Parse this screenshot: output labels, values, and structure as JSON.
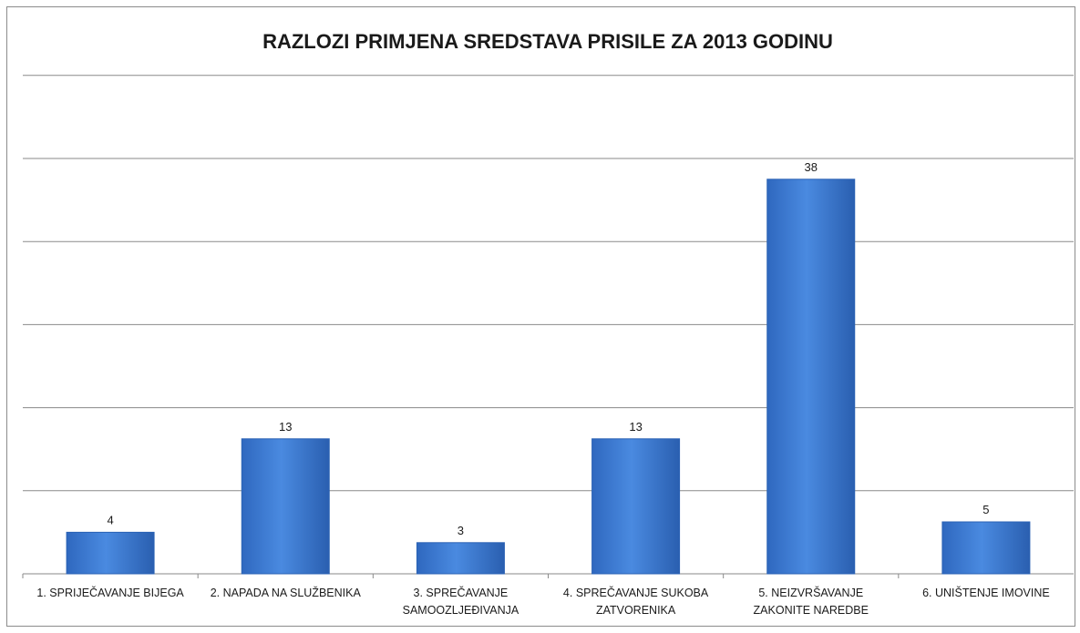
{
  "chart_data": {
    "type": "bar",
    "title": "RAZLOZI PRIMJENA SREDSTAVA PRISILE ZA 2013 GODINU",
    "xlabel": "",
    "ylabel": "",
    "categories": [
      [
        "1. SPRIJEČAVANJE BIJEGA"
      ],
      [
        "2. NAPADA NA SLUŽBENIKA"
      ],
      [
        "3. SPREČAVANJE",
        "SAMOOZLJEĐIVANJA"
      ],
      [
        "4. SPREČAVANJE SUKOBA",
        "ZATVORENIKA"
      ],
      [
        "5. NEIZVRŠAVANJE",
        "ZAKONITE NAREDBE"
      ],
      [
        "6. UNIŠTENJE IMOVINE"
      ]
    ],
    "values": [
      4,
      13,
      3,
      13,
      38,
      5
    ],
    "data_labels": [
      "4",
      "13",
      "3",
      "13",
      "38",
      "5"
    ],
    "ylim": [
      0,
      48
    ],
    "y_gridline_step": 8,
    "y_tick_labels_visible": false,
    "grid": true,
    "legend": "none",
    "bar_color": "#3f7fd6",
    "bar_color_dark": "#2a62b4"
  }
}
